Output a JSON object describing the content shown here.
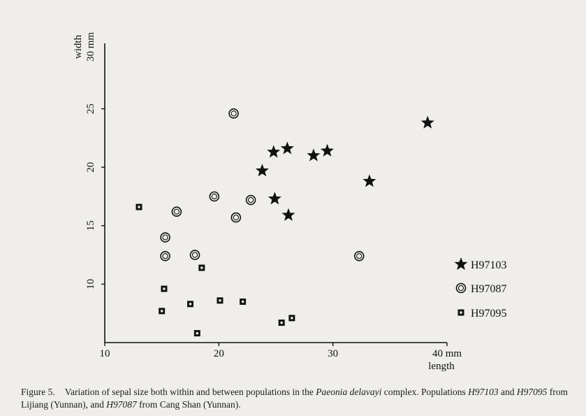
{
  "chart_data": {
    "type": "scatter",
    "xlabel": "length",
    "ylabel": "width",
    "x_unit_label": "40 mm",
    "y_unit_label": "30 mm",
    "xlim": [
      10,
      40
    ],
    "ylim": [
      5,
      30
    ],
    "x_ticks": [
      10,
      20,
      30
    ],
    "y_ticks": [
      10,
      15,
      20,
      25
    ],
    "grid": false,
    "legend_position": "right",
    "series": [
      {
        "name": "H97103",
        "marker": "star",
        "color": "#111111",
        "points": [
          [
            24.8,
            21.3
          ],
          [
            23.8,
            19.7
          ],
          [
            26.0,
            21.6
          ],
          [
            24.9,
            17.3
          ],
          [
            26.1,
            15.9
          ],
          [
            28.3,
            21.0
          ],
          [
            29.5,
            21.4
          ],
          [
            33.2,
            18.8
          ],
          [
            38.3,
            23.8
          ]
        ]
      },
      {
        "name": "H97087",
        "marker": "ring",
        "color": "#111111",
        "points": [
          [
            21.3,
            24.6
          ],
          [
            19.6,
            17.5
          ],
          [
            21.5,
            15.7
          ],
          [
            22.8,
            17.2
          ],
          [
            16.3,
            16.2
          ],
          [
            15.3,
            14.0
          ],
          [
            15.3,
            12.4
          ],
          [
            17.9,
            12.5
          ],
          [
            32.3,
            12.4
          ]
        ]
      },
      {
        "name": "H97095",
        "marker": "square",
        "color": "#111111",
        "points": [
          [
            13.0,
            16.6
          ],
          [
            15.2,
            9.6
          ],
          [
            15.0,
            7.7
          ],
          [
            17.5,
            8.3
          ],
          [
            18.5,
            11.4
          ],
          [
            20.1,
            8.6
          ],
          [
            22.1,
            8.5
          ],
          [
            18.1,
            5.8
          ],
          [
            25.5,
            6.7
          ],
          [
            26.4,
            7.1
          ]
        ]
      }
    ]
  },
  "caption": {
    "label": "Figure 5.",
    "text_part1": "Variation of sepal size both within and between populations in the ",
    "species": "Paeonia delavayi",
    "text_part2": " complex. Populations ",
    "pop1": "H97103",
    "text_part3": " and ",
    "pop2": "H97095",
    "text_part4": " from Lijiang (Yunnan), and ",
    "pop3": "H97087",
    "text_part5": " from Cang Shan (Yunnan)."
  }
}
